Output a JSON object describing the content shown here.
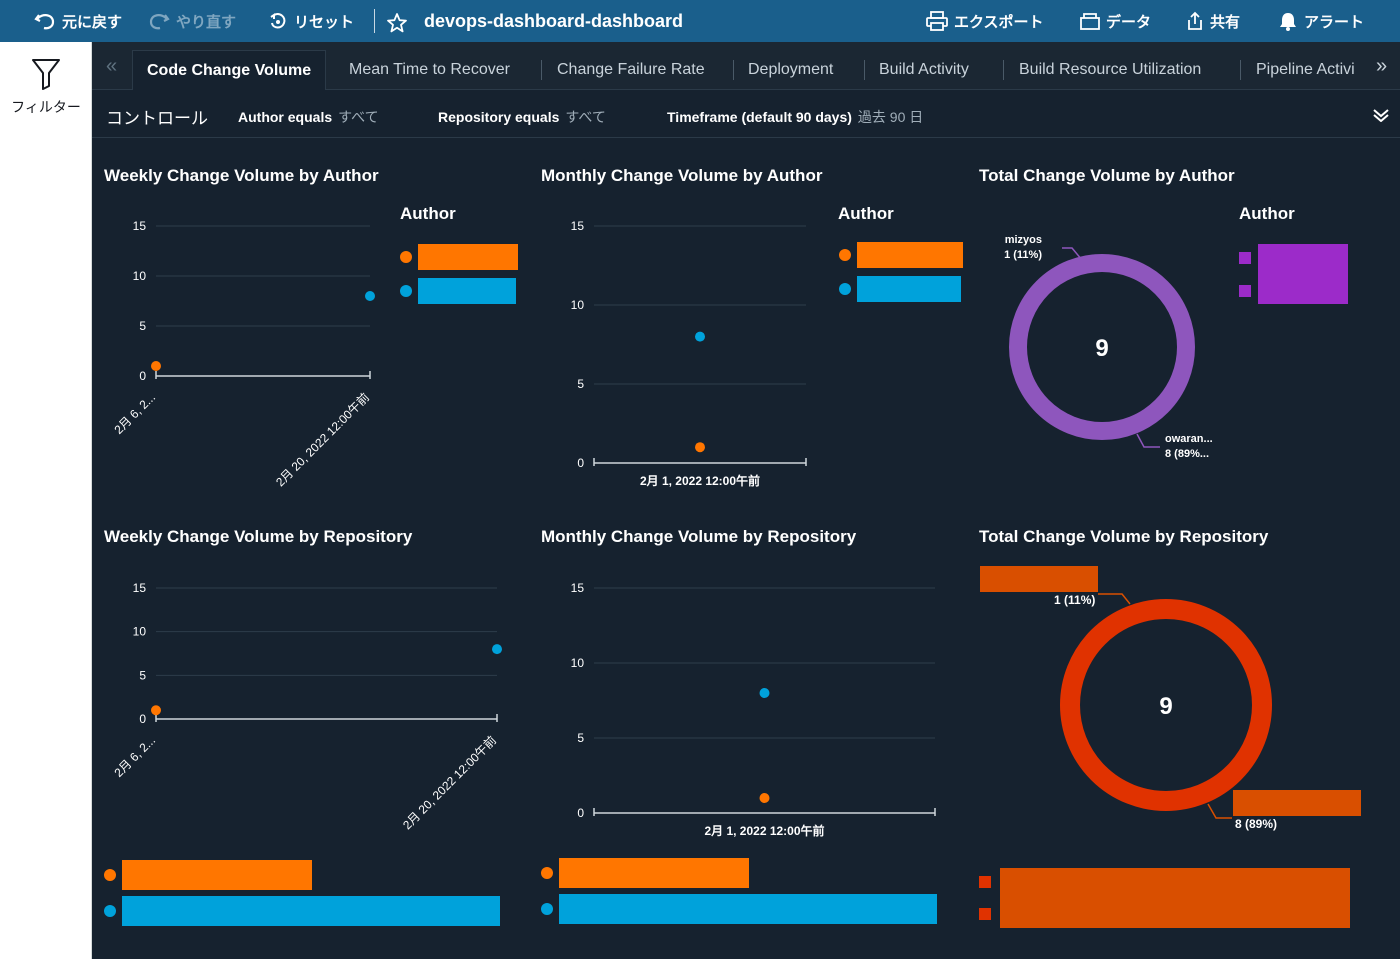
{
  "toolbar": {
    "undo": "元に戻す",
    "redo": "やり直す",
    "reset": "リセット",
    "title": "devops-dashboard-dashboard",
    "export": "エクスポート",
    "data": "データ",
    "share": "共有",
    "alert": "アラート"
  },
  "sidebar": {
    "filter_label": "フィルター"
  },
  "tabs": [
    {
      "label": "Code Change Volume",
      "active": true
    },
    {
      "label": "Mean Time to Recover"
    },
    {
      "label": "Change Failure Rate"
    },
    {
      "label": "Deployment"
    },
    {
      "label": "Build Activity"
    },
    {
      "label": "Build Resource Utilization"
    },
    {
      "label": "Pipeline Activi"
    }
  ],
  "controls": {
    "title": "コントロール",
    "author_label": "Author equals",
    "author_value": "すべて",
    "repo_label": "Repository equals",
    "repo_value": "すべて",
    "timeframe_label": "Timeframe (default 90 days)",
    "timeframe_value": "過去 90 日"
  },
  "colors": {
    "orange": "#ff7600",
    "blue": "#00a2db",
    "purple": "#9c2bc9",
    "donut_purple": "#8e56bd",
    "red": "#e03200",
    "dark_orange": "#d94f00",
    "card_bg": "#16222f"
  },
  "cards": {
    "weekly_author": {
      "title": "Weekly Change Volume by Author",
      "legend_title": "Author"
    },
    "monthly_author": {
      "title": "Monthly Change Volume by Author",
      "legend_title": "Author"
    },
    "total_author": {
      "title": "Total Change Volume by Author",
      "legend_title": "Author"
    },
    "weekly_repo": {
      "title": "Weekly Change Volume by Repository"
    },
    "monthly_repo": {
      "title": "Monthly Change Volume by Repository"
    },
    "total_repo": {
      "title": "Total Change Volume by Repository"
    }
  },
  "chart_data": [
    {
      "type": "scatter",
      "title": "Weekly Change Volume by Author",
      "x": [
        "2月 6, 2...",
        "2月 20, 2022 12:00午前"
      ],
      "ylim": [
        0,
        15
      ],
      "yticks": [
        0,
        5,
        10,
        15
      ],
      "legend_title": "Author",
      "legend_position": "right",
      "series": [
        {
          "color": "#ff7600",
          "points": [
            {
              "x": "2月 6, 2...",
              "y": 1
            }
          ]
        },
        {
          "color": "#00a2db",
          "points": [
            {
              "x": "2月 20, 2022 12:00午前",
              "y": 8
            }
          ]
        }
      ]
    },
    {
      "type": "scatter",
      "title": "Monthly Change Volume by Author",
      "x": [
        "2月 1, 2022 12:00午前"
      ],
      "ylim": [
        0,
        15
      ],
      "yticks": [
        0,
        5,
        10,
        15
      ],
      "legend_title": "Author",
      "legend_position": "right",
      "series": [
        {
          "color": "#ff7600",
          "points": [
            {
              "x": "2月 1, 2022 12:00午前",
              "y": 1
            }
          ]
        },
        {
          "color": "#00a2db",
          "points": [
            {
              "x": "2月 1, 2022 12:00午前",
              "y": 8
            }
          ]
        }
      ]
    },
    {
      "type": "pie",
      "title": "Total Change Volume by Author",
      "center_label": "9",
      "legend_title": "Author",
      "legend_position": "right",
      "slices": [
        {
          "label": "mizyos",
          "value": 1,
          "percent": "1 (11%)"
        },
        {
          "label": "owaran...",
          "value": 8,
          "percent": "8 (89%..."
        }
      ]
    },
    {
      "type": "scatter",
      "title": "Weekly Change Volume by Repository",
      "x": [
        "2月 6, 2...",
        "2月 20, 2022 12:00午前"
      ],
      "ylim": [
        0,
        15
      ],
      "yticks": [
        0,
        5,
        10,
        15
      ],
      "legend_position": "bottom",
      "series": [
        {
          "color": "#ff7600",
          "points": [
            {
              "x": "2月 6, 2...",
              "y": 1
            }
          ]
        },
        {
          "color": "#00a2db",
          "points": [
            {
              "x": "2月 20, 2022 12:00午前",
              "y": 8
            }
          ]
        }
      ]
    },
    {
      "type": "scatter",
      "title": "Monthly Change Volume by Repository",
      "x": [
        "2月 1, 2022 12:00午前"
      ],
      "ylim": [
        0,
        15
      ],
      "yticks": [
        0,
        5,
        10,
        15
      ],
      "legend_position": "bottom",
      "series": [
        {
          "color": "#ff7600",
          "points": [
            {
              "x": "2月 1, 2022 12:00午前",
              "y": 1
            }
          ]
        },
        {
          "color": "#00a2db",
          "points": [
            {
              "x": "2月 1, 2022 12:00午前",
              "y": 8
            }
          ]
        }
      ]
    },
    {
      "type": "pie",
      "title": "Total Change Volume by Repository",
      "center_label": "9",
      "legend_position": "bottom",
      "slices": [
        {
          "value": 1,
          "percent": "1 (11%)"
        },
        {
          "value": 8,
          "percent": "8 (89%)"
        }
      ]
    }
  ]
}
